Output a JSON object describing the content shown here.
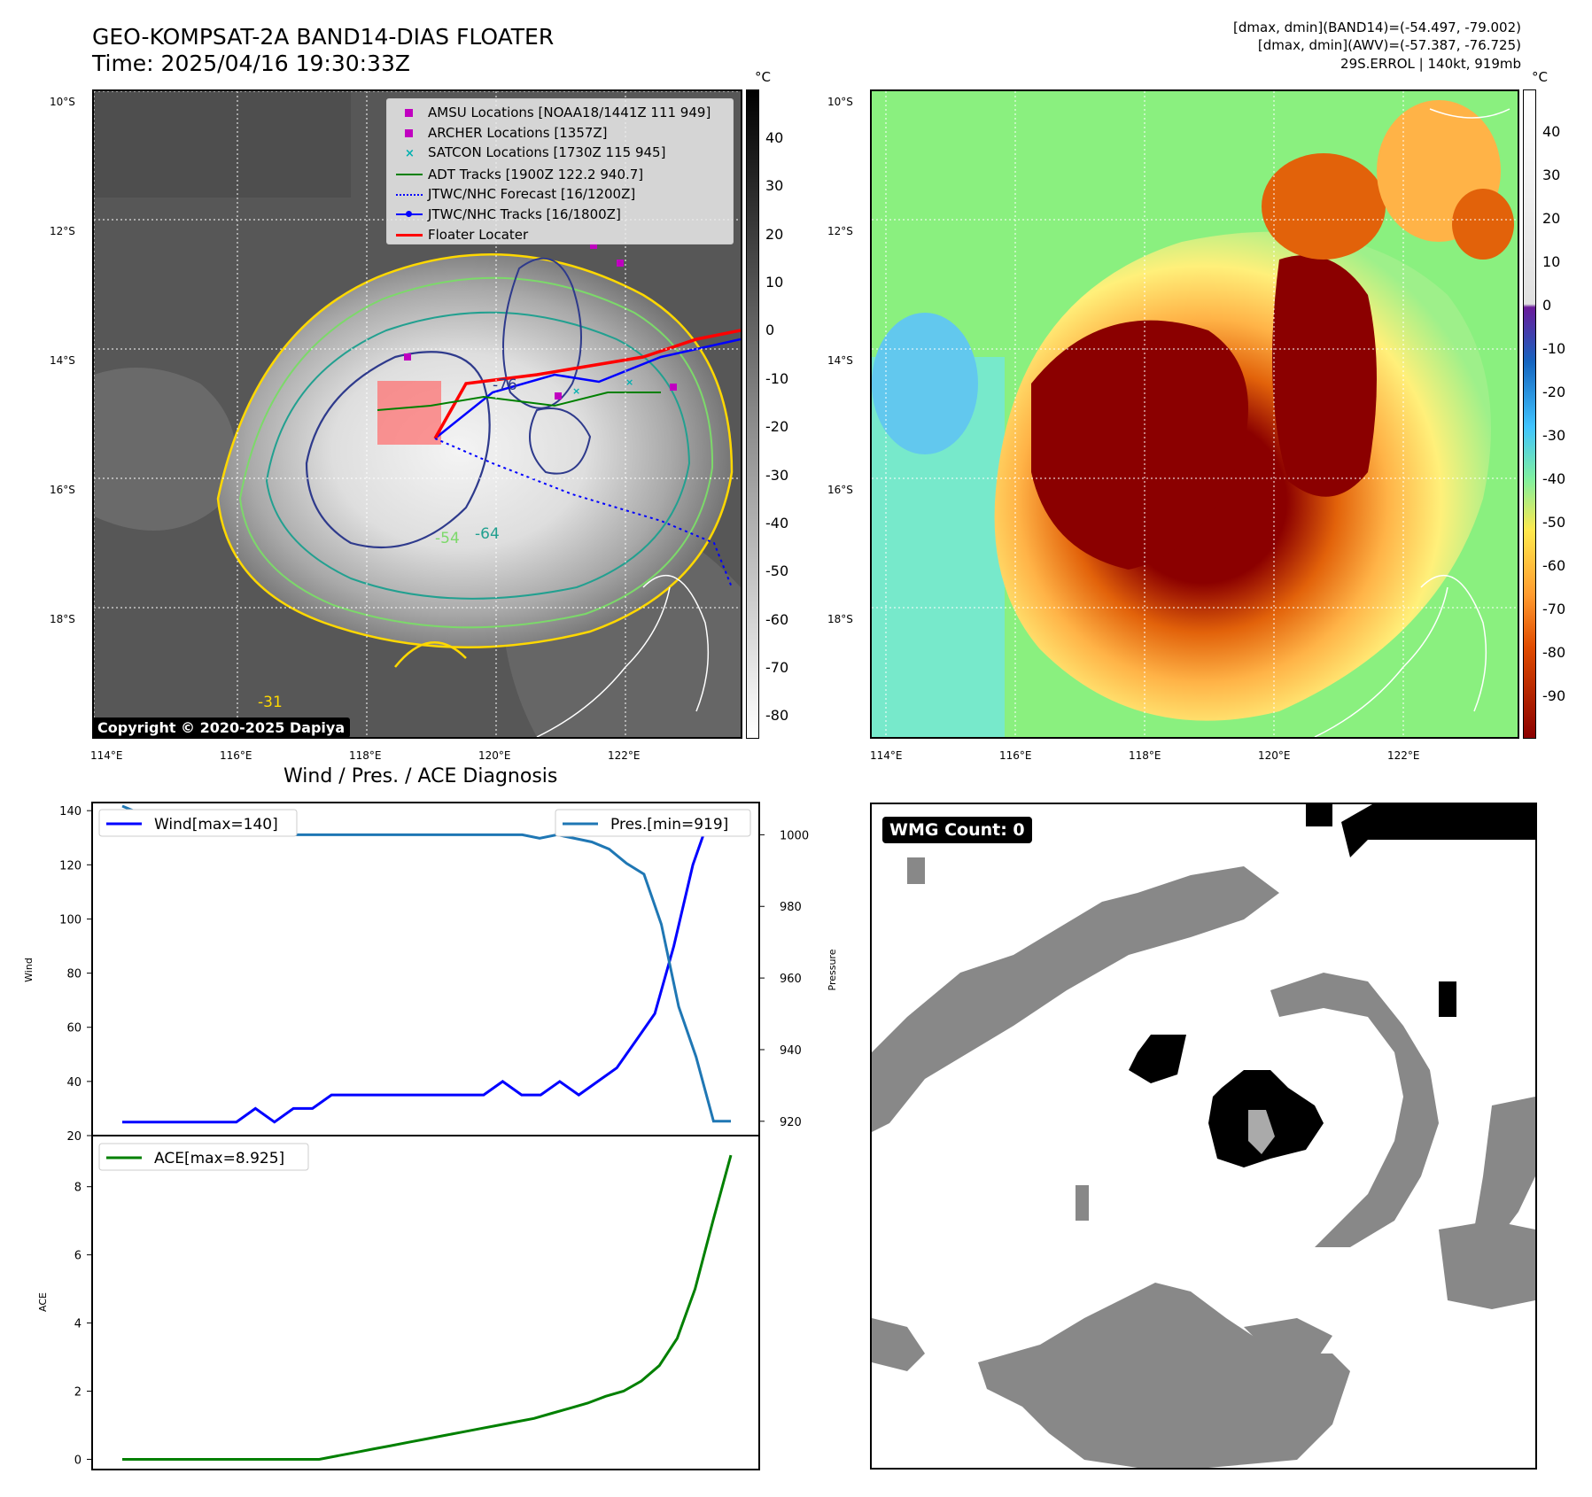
{
  "header": {
    "title_line1": "GEO-KOMPSAT-2A BAND14-DIAS FLOATER",
    "title_line2": "Time: 2025/04/16 19:30:33Z",
    "right_line1": "[dmax, dmin](BAND14)=(-54.497, -79.002)",
    "right_line2": "[dmax, dmin](AWV)=(-57.387, -76.725)",
    "right_line3": "29S.ERROL | 140kt, 919mb"
  },
  "colors": {
    "wind": "#0000ff",
    "pressure": "#1f77b4",
    "ace": "#008000",
    "amsu": "#c000c0",
    "satcon": "#00b0b0",
    "adt": "#008000",
    "jtwc": "#0000ff",
    "floater": "#ff0000"
  },
  "map": {
    "lat_labels": [
      "10°S",
      "12°S",
      "14°S",
      "16°S",
      "18°S"
    ],
    "lon_labels": [
      "114°E",
      "116°E",
      "118°E",
      "120°E",
      "122°E"
    ],
    "copyright": "Copyright © 2020-2025 Dapiya",
    "contour_labels": [
      "-76",
      "-64",
      "-54",
      "-31"
    ]
  },
  "legend": [
    {
      "label": "AMSU Locations [NOAA18/1441Z 111 949]",
      "marker": "square-magenta"
    },
    {
      "label": "ARCHER Locations [1357Z]",
      "marker": "square-magenta"
    },
    {
      "label": "SATCON Locations [1730Z 115 945]",
      "marker": "x-cyan"
    },
    {
      "label": "ADT Tracks [1900Z 122.2 940.7]",
      "marker": "line-green"
    },
    {
      "label": "JTWC/NHC Forecast [16/1200Z]",
      "marker": "dotted-blue"
    },
    {
      "label": "JTWC/NHC Tracks [16/1800Z]",
      "marker": "line-dot-blue"
    },
    {
      "label": "Floater Locater",
      "marker": "line-red"
    }
  ],
  "colorbar_gray": {
    "unit": "°C",
    "ticks": [
      "40",
      "30",
      "20",
      "10",
      "0",
      "-10",
      "-20",
      "-30",
      "-40",
      "-50",
      "-60",
      "-70",
      "-80"
    ]
  },
  "colorbar_color": {
    "unit": "°C",
    "ticks": [
      "40",
      "30",
      "20",
      "10",
      "0",
      "-10",
      "-20",
      "-30",
      "-40",
      "-50",
      "-60",
      "-70",
      "-80",
      "-90"
    ]
  },
  "wmg": {
    "label": "WMG Count: 0"
  },
  "chart_data": [
    {
      "type": "line",
      "title": "Wind / Pres. / ACE Diagnosis",
      "ylabel": "Wind",
      "ylabel_right": "Pressure",
      "ylim": [
        20,
        143
      ],
      "ylim_right": [
        916,
        1009
      ],
      "yticks": [
        "140",
        "120",
        "100",
        "80",
        "60",
        "40",
        "20"
      ],
      "yticks_right": [
        "1000",
        "980",
        "960",
        "940",
        "920"
      ],
      "series": [
        {
          "name": "Wind[max=140]",
          "axis": "left",
          "values": [
            25,
            25,
            25,
            25,
            25,
            25,
            25,
            30,
            25,
            30,
            30,
            35,
            35,
            35,
            35,
            35,
            35,
            35,
            35,
            35,
            40,
            35,
            35,
            40,
            35,
            40,
            45,
            55,
            65,
            90,
            120,
            140,
            140
          ]
        },
        {
          "name": "Pres.[min=919]",
          "axis": "right",
          "values": [
            1008,
            1006,
            1006,
            1005,
            1004,
            1002,
            1001,
            1000,
            1001,
            1000,
            1000,
            1000,
            1000,
            1000,
            1000,
            1000,
            1000,
            1000,
            1000,
            1000,
            1000,
            1000,
            1000,
            1000,
            999,
            1000,
            999,
            998,
            996,
            992,
            989,
            975,
            952,
            938,
            920,
            920
          ]
        }
      ]
    },
    {
      "type": "line",
      "ylabel": "ACE",
      "ylim": [
        -0.3,
        9.5
      ],
      "yticks": [
        "8",
        "6",
        "4",
        "2",
        "0"
      ],
      "series": [
        {
          "name": "ACE[max=8.925]",
          "values": [
            0,
            0,
            0,
            0,
            0,
            0,
            0,
            0,
            0,
            0,
            0,
            0,
            0.1,
            0.2,
            0.3,
            0.4,
            0.5,
            0.6,
            0.7,
            0.8,
            0.9,
            1.0,
            1.1,
            1.2,
            1.35,
            1.5,
            1.65,
            1.85,
            2.0,
            2.3,
            2.75,
            3.55,
            5.0,
            7.0,
            8.925
          ]
        }
      ]
    }
  ]
}
